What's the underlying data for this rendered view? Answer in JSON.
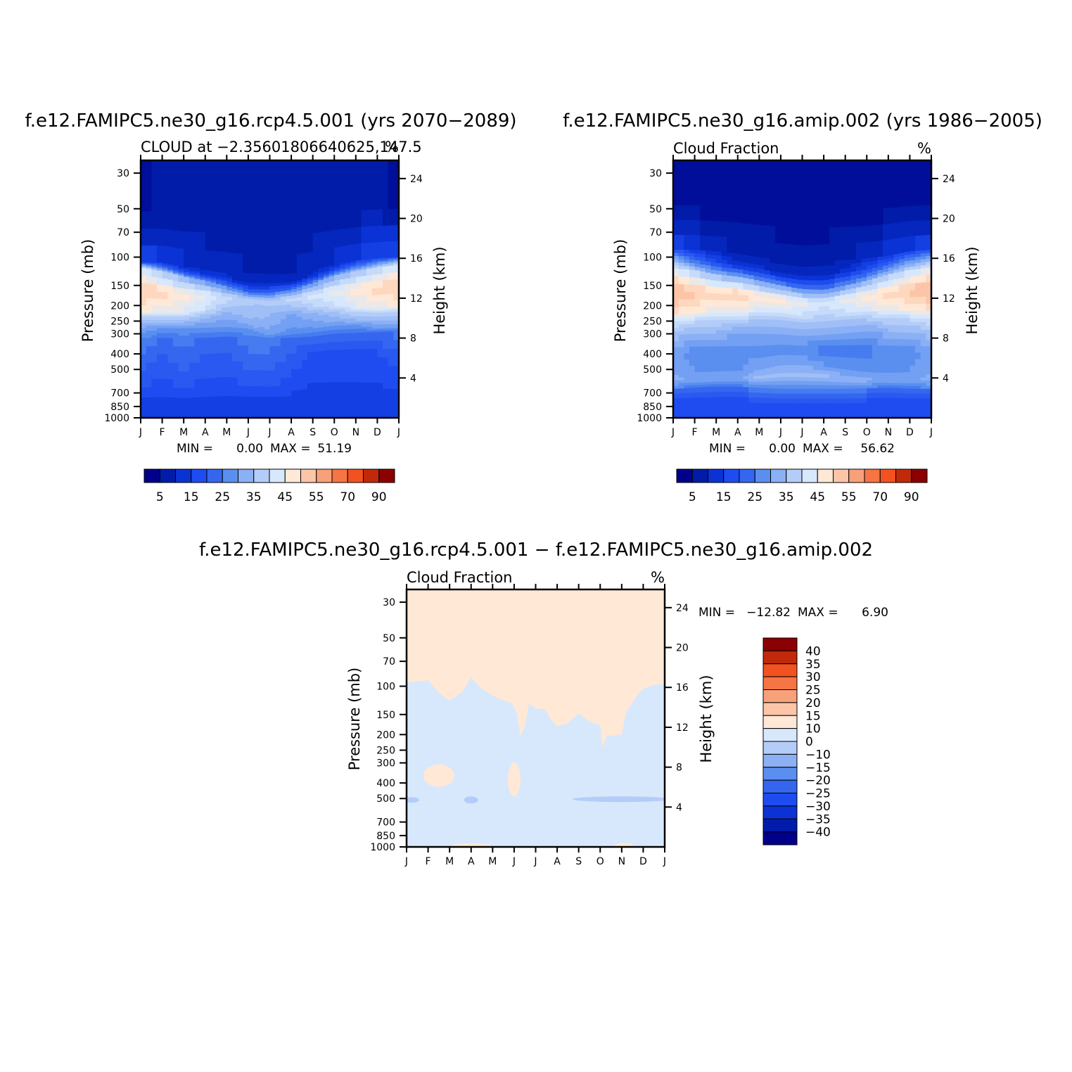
{
  "chart_data": [
    {
      "type": "heatmap",
      "title": "f.e12.FAMIPC5.ne30_g16.rcp4.5.001 (yrs 2070-2089)",
      "subtitle_left": "CLOUD at -2.35601806640625,147.5",
      "subtitle_right": "%",
      "ylabel_left": "Pressure (mb)",
      "ylabel_right": "Height (km)",
      "x_ticks": [
        "J",
        "F",
        "M",
        "A",
        "M",
        "J",
        "J",
        "A",
        "S",
        "O",
        "N",
        "D",
        "J"
      ],
      "y_ticks_pressure": [
        30,
        50,
        70,
        100,
        150,
        200,
        250,
        300,
        400,
        500,
        700,
        850,
        1000
      ],
      "y_ticks_height": [
        24,
        20,
        16,
        12,
        8,
        4
      ],
      "yscale": "log",
      "ylim_mb": [
        1000,
        25
      ],
      "stats": {
        "min_label": "MIN =",
        "min": "0.00",
        "max_label": "MAX =",
        "max": "51.19"
      },
      "colorbar": {
        "labels": [
          "5",
          "15",
          "25",
          "35",
          "45",
          "55",
          "70",
          "90"
        ]
      },
      "bands_mb": [
        [
          [
            0,
            108
          ],
          [
            1,
            108
          ],
          [
            2,
            115
          ],
          [
            3,
            117
          ],
          [
            4,
            121
          ],
          [
            5,
            126
          ],
          [
            6,
            127
          ],
          [
            7,
            127
          ],
          [
            8,
            120
          ],
          [
            9,
            112
          ],
          [
            10,
            105
          ],
          [
            11,
            102
          ],
          [
            12,
            100
          ]
        ],
        [
          [
            0,
            117
          ],
          [
            1,
            122
          ],
          [
            2,
            132
          ],
          [
            3,
            140
          ],
          [
            4,
            152
          ],
          [
            5,
            166
          ],
          [
            6,
            167
          ],
          [
            7,
            160
          ],
          [
            8,
            145
          ],
          [
            9,
            130
          ],
          [
            10,
            122
          ],
          [
            11,
            116
          ],
          [
            12,
            112
          ]
        ],
        [
          [
            0,
            222
          ],
          [
            1,
            222
          ],
          [
            2,
            222
          ],
          [
            3,
            215
          ],
          [
            4,
            205
          ],
          [
            5,
            199
          ],
          [
            6,
            210
          ],
          [
            7,
            205
          ],
          [
            8,
            205
          ],
          [
            9,
            202
          ],
          [
            10,
            205
          ],
          [
            11,
            210
          ],
          [
            12,
            205
          ]
        ],
        [
          [
            0,
            258
          ],
          [
            1,
            258
          ],
          [
            2,
            258
          ],
          [
            3,
            256
          ],
          [
            4,
            254
          ],
          [
            5,
            260
          ],
          [
            6,
            305
          ],
          [
            7,
            275
          ],
          [
            8,
            262
          ],
          [
            9,
            252
          ],
          [
            10,
            249
          ],
          [
            11,
            248
          ],
          [
            12,
            248
          ]
        ],
        [
          [
            0,
            318
          ],
          [
            1,
            318
          ],
          [
            2,
            320
          ],
          [
            3,
            318
          ],
          [
            4,
            312
          ],
          [
            5,
            318
          ],
          [
            6,
            320
          ],
          [
            7,
            318
          ],
          [
            8,
            312
          ],
          [
            9,
            300
          ],
          [
            10,
            296
          ],
          [
            11,
            293
          ],
          [
            12,
            290
          ]
        ],
        [
          [
            0,
            650
          ],
          [
            1,
            640
          ],
          [
            2,
            655
          ],
          [
            3,
            640
          ],
          [
            4,
            626
          ],
          [
            5,
            635
          ],
          [
            6,
            640
          ],
          [
            7,
            630
          ],
          [
            8,
            605
          ],
          [
            9,
            600
          ],
          [
            10,
            600
          ],
          [
            11,
            606
          ],
          [
            12,
            610
          ]
        ]
      ],
      "band_classes": [
        [
          0.5,
          1,
          1,
          1,
          1,
          1,
          1,
          1,
          1,
          1,
          1,
          1,
          0.5
        ],
        [
          6,
          4,
          3,
          2,
          2,
          1.5,
          1.5,
          1.5,
          2,
          3,
          4,
          5,
          6
        ],
        [
          10,
          9.5,
          9,
          8.5,
          7.5,
          7,
          7,
          7.5,
          8,
          8.5,
          9,
          9.5,
          10
        ],
        [
          7,
          7,
          7,
          6.5,
          6,
          6.5,
          6,
          5.5,
          6,
          6.5,
          7,
          7,
          7
        ],
        [
          5.5,
          5,
          5,
          5,
          5,
          5,
          5,
          5,
          5,
          5,
          5,
          5.5,
          5.5
        ],
        [
          4,
          3.5,
          4,
          3.5,
          3.5,
          4,
          4,
          3.5,
          3,
          3,
          3,
          3,
          3.5
        ],
        [
          2.5,
          2.5,
          2.5,
          2.5,
          2.5,
          2.5,
          2.5,
          2.5,
          2.5,
          2.5,
          2.5,
          2.5,
          2.5
        ]
      ]
    },
    {
      "type": "heatmap",
      "title": "f.e12.FAMIPC5.ne30_g16.amip.002 (yrs 1986-2005)",
      "subtitle_left": "Cloud Fraction",
      "subtitle_right": "%",
      "ylabel_left": "Pressure (mb)",
      "ylabel_right": "Height (km)",
      "x_ticks": [
        "J",
        "F",
        "M",
        "A",
        "M",
        "J",
        "J",
        "A",
        "S",
        "O",
        "N",
        "D",
        "J"
      ],
      "y_ticks_pressure": [
        30,
        50,
        70,
        100,
        150,
        200,
        250,
        300,
        400,
        500,
        700,
        850,
        1000
      ],
      "y_ticks_height": [
        24,
        20,
        16,
        12,
        8,
        4
      ],
      "yscale": "log",
      "ylim_mb": [
        1000,
        25
      ],
      "stats": {
        "min_label": "MIN =",
        "min": "0.00",
        "max_label": "MAX =",
        "max": "56.62"
      },
      "colorbar": {
        "labels": [
          "5",
          "15",
          "25",
          "35",
          "45",
          "55",
          "70",
          "90"
        ]
      },
      "bands_mb": [
        [
          [
            0,
            90
          ],
          [
            1,
            90
          ],
          [
            2,
            92
          ],
          [
            3,
            95
          ],
          [
            4,
            100
          ],
          [
            5,
            104
          ],
          [
            6,
            108
          ],
          [
            7,
            106
          ],
          [
            8,
            104
          ],
          [
            9,
            102
          ],
          [
            10,
            98
          ],
          [
            11,
            92
          ],
          [
            12,
            90
          ]
        ],
        [
          [
            0,
            118
          ],
          [
            1,
            120
          ],
          [
            2,
            128
          ],
          [
            3,
            132
          ],
          [
            4,
            140
          ],
          [
            5,
            150
          ],
          [
            6,
            158
          ],
          [
            7,
            160
          ],
          [
            8,
            150
          ],
          [
            9,
            140
          ],
          [
            10,
            128
          ],
          [
            11,
            120
          ],
          [
            12,
            116
          ]
        ],
        [
          [
            0,
            228
          ],
          [
            1,
            226
          ],
          [
            2,
            222
          ],
          [
            3,
            222
          ],
          [
            4,
            220
          ],
          [
            5,
            222
          ],
          [
            6,
            232
          ],
          [
            7,
            228
          ],
          [
            8,
            222
          ],
          [
            9,
            218
          ],
          [
            10,
            216
          ],
          [
            11,
            216
          ],
          [
            12,
            216
          ]
        ],
        [
          [
            0,
            305
          ],
          [
            1,
            300
          ],
          [
            2,
            300
          ],
          [
            3,
            300
          ],
          [
            4,
            300
          ],
          [
            5,
            302
          ],
          [
            6,
            310
          ],
          [
            7,
            305
          ],
          [
            8,
            298
          ],
          [
            9,
            290
          ],
          [
            10,
            292
          ],
          [
            11,
            296
          ],
          [
            12,
            300
          ]
        ],
        [
          [
            0,
            520
          ],
          [
            1,
            520
          ],
          [
            2,
            515
          ],
          [
            3,
            510
          ],
          [
            4,
            505
          ],
          [
            5,
            470
          ],
          [
            6,
            470
          ],
          [
            7,
            480
          ],
          [
            8,
            500
          ],
          [
            9,
            520
          ],
          [
            10,
            525
          ],
          [
            11,
            520
          ],
          [
            12,
            515
          ]
        ],
        [
          [
            0,
            660
          ],
          [
            1,
            650
          ],
          [
            2,
            640
          ],
          [
            3,
            640
          ],
          [
            4,
            650
          ],
          [
            5,
            660
          ],
          [
            6,
            660
          ],
          [
            7,
            660
          ],
          [
            8,
            660
          ],
          [
            9,
            655
          ],
          [
            10,
            650
          ],
          [
            11,
            660
          ],
          [
            12,
            660
          ]
        ]
      ],
      "band_classes": [
        [
          0.5,
          0.5,
          0.5,
          0.5,
          0.5,
          0.5,
          0.5,
          0.5,
          0.5,
          0.5,
          0.5,
          0.5,
          0.5
        ],
        [
          6,
          4,
          3,
          2,
          2,
          1.5,
          1.5,
          1.5,
          2,
          3,
          4,
          5,
          6
        ],
        [
          10.5,
          10,
          9.5,
          10,
          9,
          9,
          8.5,
          8,
          8.5,
          9,
          9.5,
          10,
          10.5
        ],
        [
          7.5,
          7,
          7,
          6.5,
          6.5,
          6.5,
          6.5,
          6.5,
          6.5,
          6.5,
          7,
          7,
          7.5
        ],
        [
          5.5,
          5,
          5,
          5,
          5,
          5,
          5,
          4.5,
          4.5,
          4.5,
          5,
          5,
          5.5
        ],
        [
          6,
          5.5,
          5.5,
          5.5,
          6.5,
          6.5,
          6.5,
          6.5,
          6,
          6,
          5.5,
          5.5,
          6
        ],
        [
          3,
          3,
          3,
          3,
          3,
          3,
          3,
          3,
          3,
          3,
          3,
          3,
          3
        ]
      ]
    },
    {
      "type": "heatmap",
      "title": "f.e12.FAMIPC5.ne30_g16.rcp4.5.001 - f.e12.FAMIPC5.ne30_g16.amip.002",
      "subtitle_left": "Cloud Fraction",
      "subtitle_right": "%",
      "ylabel_left": "Pressure (mb)",
      "ylabel_right": "Height (km)",
      "x_ticks": [
        "J",
        "F",
        "M",
        "A",
        "M",
        "J",
        "J",
        "A",
        "S",
        "O",
        "N",
        "D",
        "J"
      ],
      "y_ticks_pressure": [
        30,
        50,
        70,
        100,
        150,
        200,
        250,
        300,
        400,
        500,
        700,
        850,
        1000
      ],
      "y_ticks_height": [
        24,
        20,
        16,
        12,
        8,
        4
      ],
      "yscale": "log",
      "ylim_mb": [
        1000,
        25
      ],
      "stats": {
        "min_label": "MIN =",
        "min": "-12.82",
        "max_label": "MAX =",
        "max": "6.90"
      },
      "colorbar": {
        "labels": [
          "40",
          "35",
          "30",
          "25",
          "20",
          "15",
          "10",
          "0",
          "-10",
          "-15",
          "-20",
          "-25",
          "-30",
          "-35",
          "-40"
        ]
      },
      "regions": {
        "positive_upper_boundary_mb": [
          [
            0,
            95
          ],
          [
            1,
            92
          ],
          [
            1.5,
            110
          ],
          [
            2,
            123
          ],
          [
            2.6,
            108
          ],
          [
            3,
            88
          ],
          [
            3.5,
            104
          ],
          [
            4.2,
            118
          ],
          [
            4.9,
            128
          ],
          [
            5.1,
            145
          ],
          [
            5.3,
            205
          ],
          [
            5.5,
            178
          ],
          [
            5.7,
            128
          ],
          [
            6,
            138
          ],
          [
            6.4,
            138
          ],
          [
            6.7,
            160
          ],
          [
            7,
            178
          ],
          [
            7.5,
            170
          ],
          [
            8,
            148
          ],
          [
            8.5,
            165
          ],
          [
            9,
            175
          ],
          [
            9.1,
            240
          ],
          [
            9.3,
            205
          ],
          [
            10,
            200
          ],
          [
            10.2,
            145
          ],
          [
            10.8,
            110
          ],
          [
            11,
            104
          ],
          [
            11.5,
            98
          ],
          [
            12,
            97
          ]
        ],
        "positive_upper_above_mb": 25
      }
    }
  ]
}
